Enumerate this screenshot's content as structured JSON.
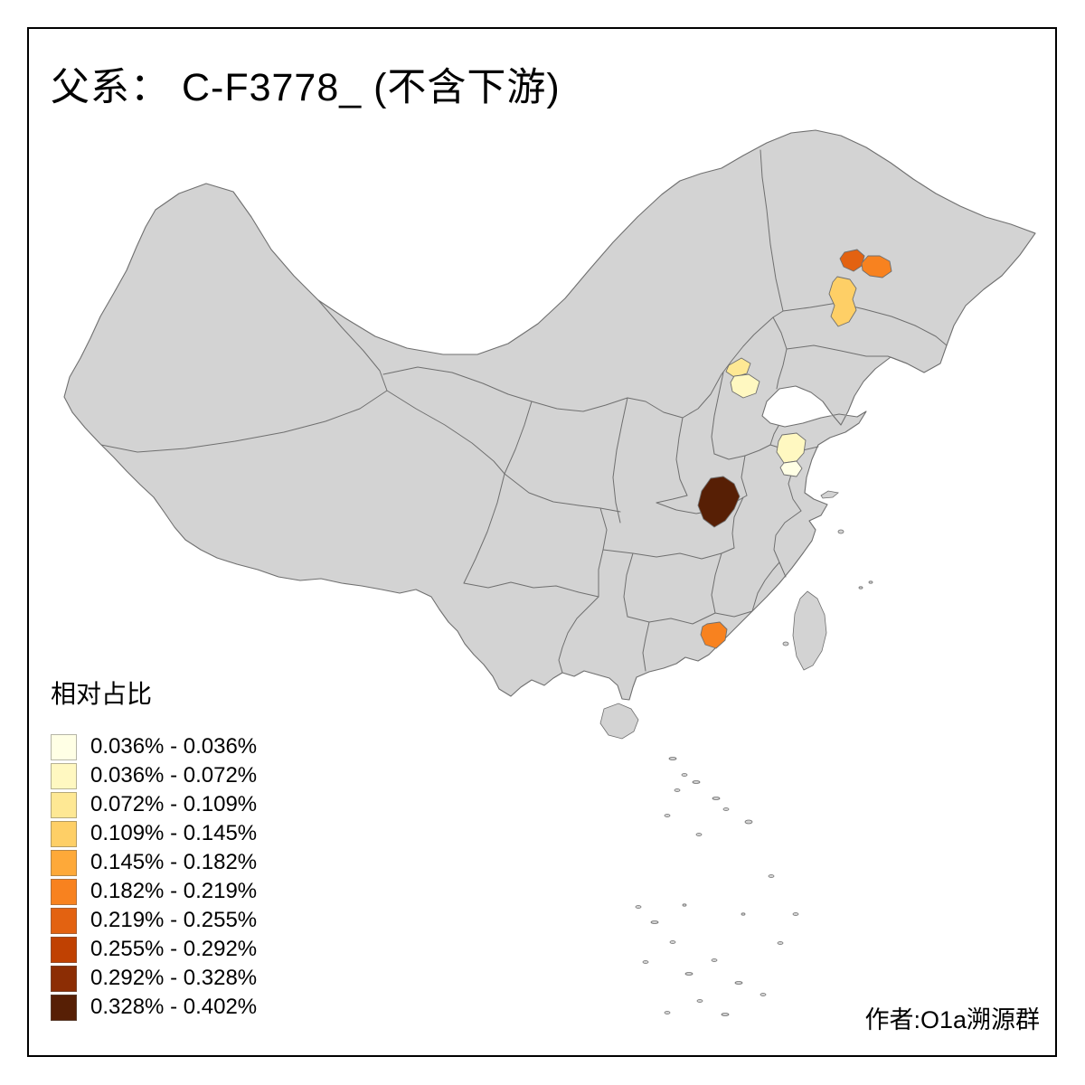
{
  "title": "父系： C-F3778_ (不含下游)",
  "legend": {
    "title": "相对占比",
    "classes": [
      {
        "label": "0.036% - 0.036%",
        "color": "#FFFFE5"
      },
      {
        "label": "0.036% - 0.072%",
        "color": "#FFF8C1"
      },
      {
        "label": "0.072% - 0.109%",
        "color": "#FEE894"
      },
      {
        "label": "0.109% - 0.145%",
        "color": "#FECF66"
      },
      {
        "label": "0.145% - 0.182%",
        "color": "#FEA939"
      },
      {
        "label": "0.182% - 0.219%",
        "color": "#F8821F"
      },
      {
        "label": "0.219% - 0.255%",
        "color": "#E36211"
      },
      {
        "label": "0.255% - 0.292%",
        "color": "#C04102"
      },
      {
        "label": "0.292% - 0.328%",
        "color": "#8C2D04"
      },
      {
        "label": "0.328% - 0.402%",
        "color": "#571F05"
      }
    ]
  },
  "attribution": "作者:O1a溯源群",
  "map": {
    "land_color": "#d3d3d3",
    "border_color": "#6f6f6f",
    "sea_color": "#ffffff",
    "regions": [
      {
        "id": "region-northeast-w",
        "name": "northeast-west-patch",
        "class_index": 6
      },
      {
        "id": "region-northeast-e",
        "name": "northeast-east-patch",
        "class_index": 5
      },
      {
        "id": "region-northeast-s",
        "name": "northeast-lower-patch",
        "class_index": 3
      },
      {
        "id": "region-hebei-n",
        "name": "hebei-upper-patch",
        "class_index": 2
      },
      {
        "id": "region-hebei-s",
        "name": "hebei-lower-patch",
        "class_index": 1
      },
      {
        "id": "region-jiangsu-n",
        "name": "jiangsu-upper-patch",
        "class_index": 1
      },
      {
        "id": "region-jiangsu-s",
        "name": "jiangsu-lower-patch",
        "class_index": 0
      },
      {
        "id": "region-hubei",
        "name": "hubei-patch",
        "class_index": 9
      },
      {
        "id": "region-guangdong",
        "name": "guangdong-patch",
        "class_index": 5
      }
    ]
  }
}
